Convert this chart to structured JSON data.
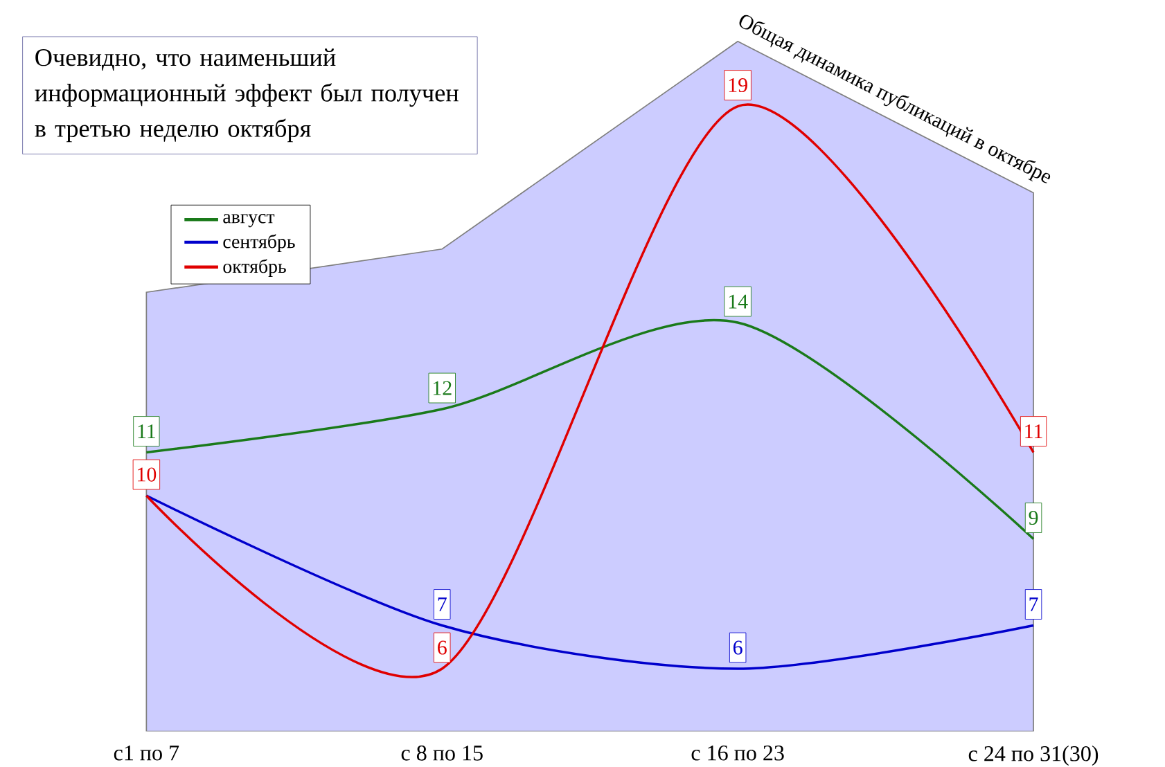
{
  "chart_data": {
    "type": "line",
    "categories": [
      "с1 по 7",
      "с 8 по 15",
      "с 16 по 23",
      "с 24 по 31(30)"
    ],
    "series": [
      {
        "name": "Общая динамика публикаций в октябре",
        "type": "area",
        "color": "#ccccff",
        "values": [
          14.7,
          15.7,
          20.5,
          17.0
        ]
      },
      {
        "name": "август",
        "color": "#1a7a1a",
        "values": [
          11,
          12,
          14,
          9
        ],
        "value_labels": [
          "11",
          "12",
          "14",
          "9"
        ]
      },
      {
        "name": "сентябрь",
        "color": "#0000cc",
        "values": [
          10,
          7,
          6,
          7
        ],
        "value_labels": [
          null,
          "7",
          "6",
          "7"
        ]
      },
      {
        "name": "октябрь",
        "color": "#e00000",
        "values": [
          10,
          6,
          19,
          11
        ],
        "value_labels": [
          "10",
          "6",
          "19",
          "11"
        ]
      }
    ],
    "legend": "top left",
    "grid": false,
    "marker": "none",
    "annotations": [
      "Очевидно, что наименьший информационный эффект был получен в третью неделю октября"
    ]
  }
}
